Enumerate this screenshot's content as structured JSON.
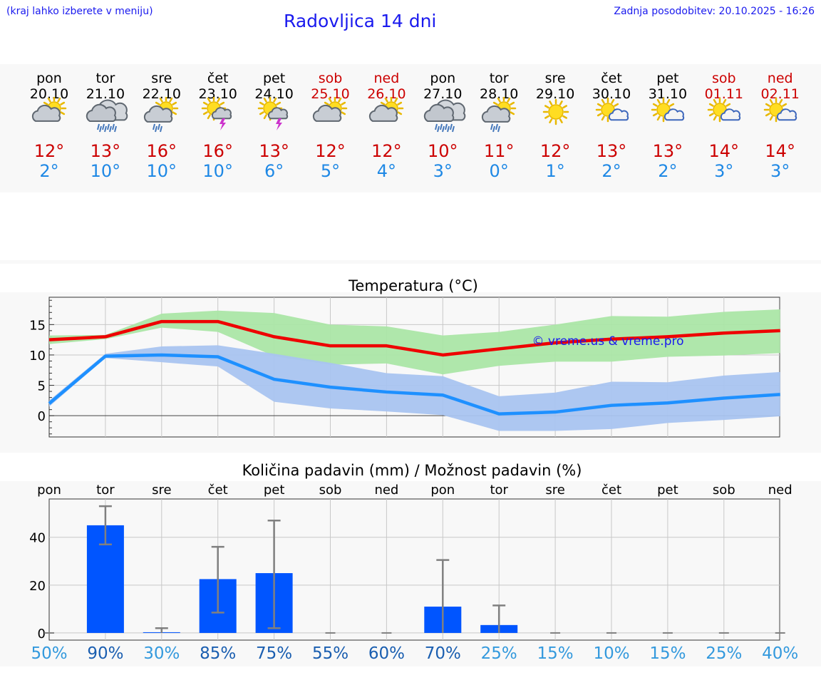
{
  "header": {
    "note": "(kraj lahko izberete v meniju)",
    "title": "Radovljica 14 dni",
    "updated": "Zadnja posodobitev: 20.10.2025 - 16:26"
  },
  "days": [
    {
      "name": "pon",
      "date": "20.10",
      "weekend": false,
      "icon": "sun-cloud",
      "tmax": "12°",
      "tmin": "2°"
    },
    {
      "name": "tor",
      "date": "21.10",
      "weekend": false,
      "icon": "cloud-rain",
      "tmax": "13°",
      "tmin": "10°"
    },
    {
      "name": "sre",
      "date": "22.10",
      "weekend": false,
      "icon": "sun-cloud-rain",
      "tmax": "16°",
      "tmin": "10°"
    },
    {
      "name": "čet",
      "date": "23.10",
      "weekend": false,
      "icon": "sun-cloud-thunder",
      "tmax": "16°",
      "tmin": "10°"
    },
    {
      "name": "pet",
      "date": "24.10",
      "weekend": false,
      "icon": "sun-cloud-thunder",
      "tmax": "13°",
      "tmin": "6°"
    },
    {
      "name": "sob",
      "date": "25.10",
      "weekend": true,
      "icon": "sun-cloud",
      "tmax": "12°",
      "tmin": "5°"
    },
    {
      "name": "ned",
      "date": "26.10",
      "weekend": true,
      "icon": "sun-cloud",
      "tmax": "12°",
      "tmin": "4°"
    },
    {
      "name": "pon",
      "date": "27.10",
      "weekend": false,
      "icon": "cloud-rain",
      "tmax": "10°",
      "tmin": "3°"
    },
    {
      "name": "tor",
      "date": "28.10",
      "weekend": false,
      "icon": "sun-cloud-rain",
      "tmax": "11°",
      "tmin": "0°"
    },
    {
      "name": "sre",
      "date": "29.10",
      "weekend": false,
      "icon": "sun",
      "tmax": "12°",
      "tmin": "1°"
    },
    {
      "name": "čet",
      "date": "30.10",
      "weekend": false,
      "icon": "sun-small-cloud",
      "tmax": "13°",
      "tmin": "2°"
    },
    {
      "name": "pet",
      "date": "31.10",
      "weekend": false,
      "icon": "sun-small-cloud",
      "tmax": "13°",
      "tmin": "2°"
    },
    {
      "name": "sob",
      "date": "01.11",
      "weekend": true,
      "icon": "sun-small-cloud",
      "tmax": "14°",
      "tmin": "3°"
    },
    {
      "name": "ned",
      "date": "02.11",
      "weekend": true,
      "icon": "sun-small-cloud",
      "tmax": "14°",
      "tmin": "3°"
    }
  ],
  "colors": {
    "max_line": "#ee0000",
    "min_line": "#1e90ff",
    "max_band": "#abe6a6",
    "min_band": "#a9c4f0",
    "bar": "#0055ff",
    "error": "#808080",
    "weekend": "#cc0000",
    "prob_low": "#3399dd",
    "prob_high": "#1a5eb0"
  },
  "chart_data": [
    {
      "type": "line",
      "title": "Temperatura (°C)",
      "watermark": "© vreme.us & vreme.pro",
      "ylim": [
        -3.5,
        19.5
      ],
      "yticks": [
        0,
        5,
        10,
        15
      ],
      "series": [
        {
          "name": "max",
          "values": [
            12.5,
            13,
            15.5,
            15.5,
            13,
            11.5,
            11.5,
            10,
            11,
            12,
            12.6,
            13,
            13.6,
            14
          ]
        },
        {
          "name": "max_high",
          "values": [
            13.2,
            13.3,
            16.8,
            17.3,
            16.9,
            15,
            14.7,
            13.2,
            13.8,
            15,
            16.4,
            16.3,
            17.1,
            17.5
          ]
        },
        {
          "name": "max_low",
          "values": [
            11.8,
            12.6,
            14.5,
            13.8,
            9.8,
            8.4,
            8.6,
            6.8,
            8.2,
            8.9,
            8.9,
            9.7,
            9.9,
            10.3
          ]
        },
        {
          "name": "min",
          "values": [
            2,
            9.8,
            10,
            9.7,
            6,
            4.7,
            3.9,
            3.4,
            0.3,
            0.6,
            1.7,
            2.1,
            2.9,
            3.5
          ]
        },
        {
          "name": "min_high",
          "values": [
            2.5,
            10.2,
            11.4,
            11.6,
            10.2,
            8.7,
            7,
            6.5,
            3.2,
            3.8,
            5.6,
            5.5,
            6.6,
            7.2
          ]
        },
        {
          "name": "min_low",
          "values": [
            1.5,
            9.5,
            8.8,
            8.1,
            2.3,
            1.2,
            0.7,
            0.1,
            -2.5,
            -2.5,
            -2.2,
            -1.2,
            -0.7,
            -0.1
          ]
        }
      ]
    },
    {
      "type": "bar",
      "title": "Količina padavin (mm) / Možnost padavin (%)",
      "categories": [
        "pon",
        "tor",
        "sre",
        "čet",
        "pet",
        "sob",
        "ned",
        "pon",
        "tor",
        "sre",
        "čet",
        "pet",
        "sob",
        "ned"
      ],
      "values": [
        0,
        45,
        0.3,
        22.5,
        25,
        0,
        0,
        11,
        3.3,
        0,
        0,
        0,
        0,
        0
      ],
      "err_low": [
        0,
        37,
        0,
        8.5,
        2,
        0,
        0,
        0,
        0,
        0,
        0,
        0,
        0,
        0
      ],
      "err_high": [
        0,
        53,
        2,
        36,
        47,
        0,
        0,
        30.5,
        11.5,
        0,
        0,
        0,
        0,
        0
      ],
      "probability": [
        "50%",
        "90%",
        "30%",
        "85%",
        "75%",
        "55%",
        "60%",
        "70%",
        "25%",
        "15%",
        "10%",
        "15%",
        "25%",
        "40%"
      ],
      "ylim": [
        -3,
        56
      ],
      "yticks": [
        0,
        20,
        40
      ]
    }
  ]
}
